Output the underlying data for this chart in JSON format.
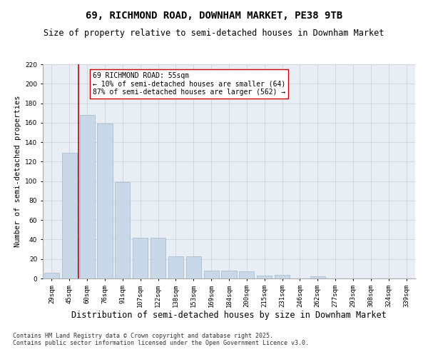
{
  "title": "69, RICHMOND ROAD, DOWNHAM MARKET, PE38 9TB",
  "subtitle": "Size of property relative to semi-detached houses in Downham Market",
  "xlabel": "Distribution of semi-detached houses by size in Downham Market",
  "ylabel": "Number of semi-detached properties",
  "categories": [
    "29sqm",
    "45sqm",
    "60sqm",
    "76sqm",
    "91sqm",
    "107sqm",
    "122sqm",
    "138sqm",
    "153sqm",
    "169sqm",
    "184sqm",
    "200sqm",
    "215sqm",
    "231sqm",
    "246sqm",
    "262sqm",
    "277sqm",
    "293sqm",
    "308sqm",
    "324sqm",
    "339sqm"
  ],
  "values": [
    6,
    129,
    168,
    159,
    99,
    42,
    42,
    23,
    23,
    8,
    8,
    7,
    3,
    4,
    0,
    2,
    0,
    0,
    0,
    0,
    0
  ],
  "bar_color": "#c8d8e8",
  "bar_edge_color": "#a0b8cc",
  "vline_x_idx": 1,
  "vline_color": "#cc0000",
  "annotation_text": "69 RICHMOND ROAD: 55sqm\n← 10% of semi-detached houses are smaller (64)\n87% of semi-detached houses are larger (562) →",
  "annotation_box_color": "#ffffff",
  "annotation_box_edge": "#cc0000",
  "ylim": [
    0,
    220
  ],
  "yticks": [
    0,
    20,
    40,
    60,
    80,
    100,
    120,
    140,
    160,
    180,
    200,
    220
  ],
  "background_color": "#e8eef4",
  "grid_color": "#c8d0d8",
  "footer_text": "Contains HM Land Registry data © Crown copyright and database right 2025.\nContains public sector information licensed under the Open Government Licence v3.0.",
  "title_fontsize": 10,
  "subtitle_fontsize": 8.5,
  "xlabel_fontsize": 8.5,
  "ylabel_fontsize": 7.5,
  "tick_fontsize": 6.5,
  "annotation_fontsize": 7,
  "footer_fontsize": 6
}
